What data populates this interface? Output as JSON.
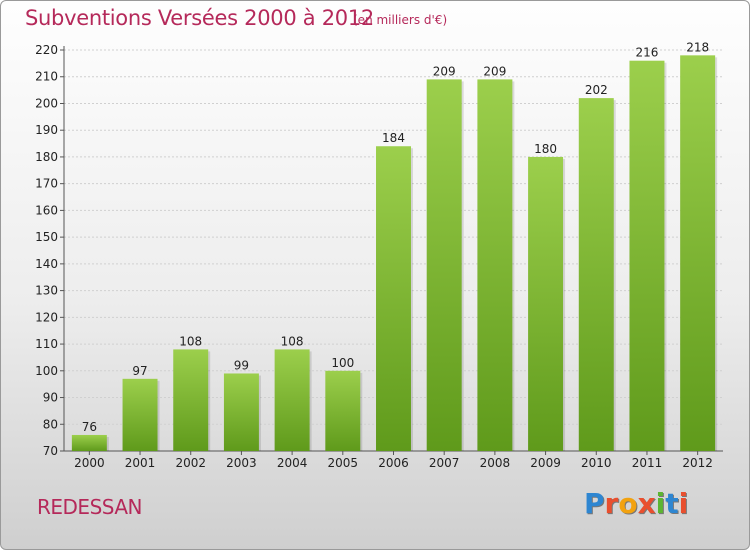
{
  "header": {
    "title": "Subventions Versées 2000 à 2012",
    "subtitle": "(en milliers d'€)"
  },
  "footer": {
    "commune": "REDESSAN",
    "logo_text": "Proxiti"
  },
  "colors": {
    "accent": "#b5295a",
    "bar_light": "#9ccf4c",
    "bar_dark": "#5f9a1b",
    "logo": [
      "#2e86d1",
      "#e94f2e",
      "#f2a20f",
      "#e94f2e",
      "#5bb531",
      "#2e86d1",
      "#e94f2e"
    ]
  },
  "chart_data": {
    "type": "bar",
    "title": "Subventions Versées 2000 à 2012",
    "subtitle": "(en milliers d'€)",
    "categories": [
      "2000",
      "2001",
      "2002",
      "2003",
      "2004",
      "2005",
      "2006",
      "2007",
      "2008",
      "2009",
      "2010",
      "2011",
      "2012"
    ],
    "values": [
      76,
      97,
      108,
      99,
      108,
      100,
      184,
      209,
      209,
      180,
      202,
      216,
      218
    ],
    "ylim": [
      70,
      220
    ],
    "yticks": [
      70,
      80,
      90,
      100,
      110,
      120,
      130,
      140,
      150,
      160,
      170,
      180,
      190,
      200,
      210,
      220
    ],
    "grid": true,
    "legend": "none"
  }
}
